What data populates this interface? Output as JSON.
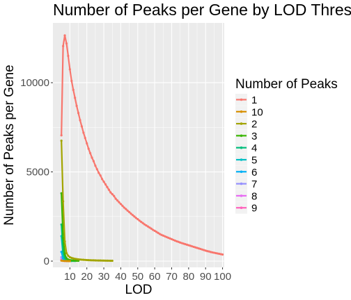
{
  "chart_data": {
    "type": "line",
    "title": "Number of Peaks per Gene by LOD Threshold",
    "xlabel": "LOD",
    "ylabel": "Number of Peaks per Gene",
    "xlim": [
      0,
      101
    ],
    "ylim": [
      -350,
      13350
    ],
    "x_ticks": [
      10,
      20,
      30,
      40,
      50,
      60,
      70,
      80,
      90,
      100
    ],
    "x_tick_labels": [
      "10",
      "20",
      "30",
      "40",
      "50",
      "60",
      "70",
      "80",
      "90",
      "100"
    ],
    "y_ticks": [
      0,
      5000,
      10000
    ],
    "y_tick_labels": [
      "0",
      "5000",
      "10000"
    ],
    "grid": true,
    "legend": {
      "title": "Number of Peaks",
      "position": "right",
      "entries": [
        "1",
        "10",
        "2",
        "3",
        "4",
        "5",
        "6",
        "7",
        "8",
        "9"
      ]
    },
    "series": [
      {
        "name": "1",
        "color": "#F8766D",
        "x": [
          5,
          6,
          7,
          8,
          9,
          10,
          11,
          12,
          13,
          14,
          15,
          16,
          17,
          18,
          19,
          20,
          21,
          22,
          23,
          24,
          25,
          26,
          27,
          28,
          29,
          30,
          31,
          32,
          33,
          34,
          35,
          36,
          37,
          38,
          39,
          40,
          41,
          42,
          43,
          44,
          45,
          46,
          47,
          48,
          49,
          50,
          51,
          52,
          53,
          54,
          55,
          56,
          57,
          58,
          59,
          60,
          61,
          62,
          63,
          64,
          65,
          66,
          67,
          68,
          69,
          70,
          71,
          72,
          73,
          74,
          75,
          76,
          77,
          78,
          79,
          80,
          81,
          82,
          83,
          84,
          85,
          86,
          87,
          88,
          89,
          90,
          91,
          92,
          93,
          94,
          95,
          96,
          97,
          98,
          99,
          100
        ],
        "y": [
          7050,
          12050,
          12650,
          12200,
          11500,
          10750,
          10100,
          9600,
          9150,
          8700,
          8300,
          7900,
          7550,
          7200,
          6900,
          6600,
          6300,
          6050,
          5800,
          5600,
          5350,
          5150,
          4950,
          4800,
          4600,
          4450,
          4300,
          4150,
          4000,
          3850,
          3750,
          3650,
          3500,
          3400,
          3300,
          3200,
          3100,
          3000,
          2920,
          2830,
          2750,
          2660,
          2580,
          2500,
          2420,
          2350,
          2270,
          2200,
          2130,
          2060,
          2000,
          1940,
          1880,
          1820,
          1750,
          1700,
          1640,
          1580,
          1520,
          1470,
          1430,
          1390,
          1350,
          1310,
          1270,
          1230,
          1190,
          1150,
          1110,
          1080,
          1040,
          1010,
          980,
          950,
          920,
          890,
          860,
          830,
          800,
          770,
          740,
          710,
          680,
          650,
          620,
          590,
          560,
          540,
          510,
          490,
          470,
          450,
          430,
          410,
          390,
          370
        ]
      },
      {
        "name": "10",
        "color": "#D89000",
        "x": [
          5,
          6,
          7,
          8,
          9,
          10
        ],
        "y": [
          30,
          15,
          8,
          4,
          2,
          1
        ]
      },
      {
        "name": "2",
        "color": "#A3A500",
        "x": [
          5,
          6,
          7,
          8,
          9,
          10,
          11,
          12,
          13,
          14,
          15,
          16,
          17,
          18,
          19,
          20,
          21,
          22,
          23,
          24,
          25,
          26,
          27,
          28,
          29,
          30,
          31,
          32,
          33,
          34,
          35
        ],
        "y": [
          6750,
          3350,
          1100,
          450,
          300,
          220,
          180,
          150,
          130,
          115,
          100,
          90,
          80,
          72,
          66,
          60,
          55,
          50,
          46,
          43,
          40,
          37,
          35,
          33,
          31,
          29,
          27,
          25,
          23,
          21,
          20
        ]
      },
      {
        "name": "3",
        "color": "#39B600",
        "x": [
          5,
          6,
          7,
          8,
          9,
          10,
          11,
          12,
          13,
          14,
          15
        ],
        "y": [
          3800,
          1300,
          380,
          160,
          90,
          60,
          45,
          35,
          28,
          22,
          18
        ]
      },
      {
        "name": "4",
        "color": "#00BF7D",
        "x": [
          5,
          6,
          7,
          8,
          9,
          10,
          11,
          12,
          13
        ],
        "y": [
          2050,
          560,
          180,
          80,
          45,
          30,
          20,
          15,
          10
        ]
      },
      {
        "name": "5",
        "color": "#00BFC4",
        "x": [
          5,
          6,
          7,
          8,
          9,
          10,
          11
        ],
        "y": [
          1400,
          300,
          90,
          40,
          20,
          12,
          8
        ]
      },
      {
        "name": "6",
        "color": "#00B0F6",
        "x": [
          5,
          6,
          7,
          8,
          9,
          10
        ],
        "y": [
          520,
          150,
          50,
          20,
          10,
          5
        ]
      },
      {
        "name": "7",
        "color": "#9590FF",
        "x": [
          5,
          6,
          7,
          8,
          9
        ],
        "y": [
          220,
          70,
          25,
          10,
          5
        ]
      },
      {
        "name": "8",
        "color": "#E76BF3",
        "x": [
          5,
          6,
          7,
          8
        ],
        "y": [
          110,
          35,
          12,
          5
        ]
      },
      {
        "name": "9",
        "color": "#FF62BC",
        "x": [
          5,
          6,
          7,
          8
        ],
        "y": [
          60,
          20,
          8,
          3
        ]
      }
    ]
  },
  "colors": {
    "panel_background": "#EBEBEB",
    "grid_major": "#FFFFFF",
    "legend_key_background": "#F2F2F2"
  }
}
